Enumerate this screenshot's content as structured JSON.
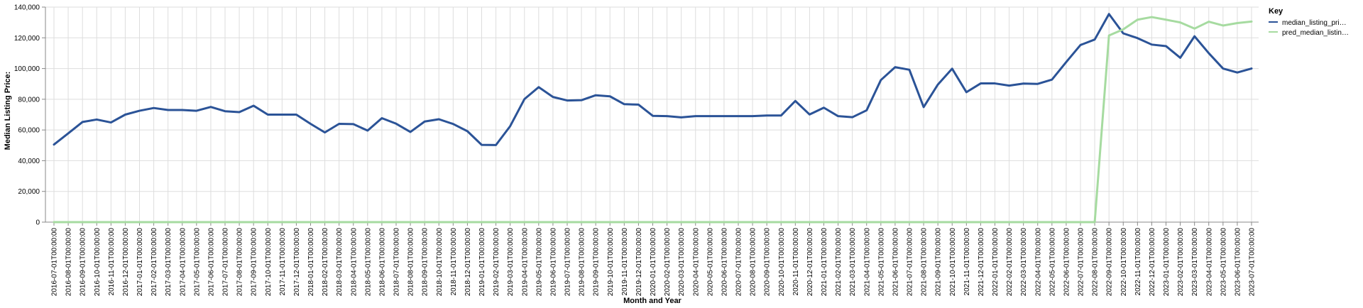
{
  "chart_data": {
    "type": "line",
    "xlabel": "Month and Year",
    "ylabel": "Median Listing Price:",
    "ylim": [
      0,
      140000
    ],
    "yticks": [
      0,
      20000,
      40000,
      60000,
      80000,
      100000,
      120000,
      140000
    ],
    "ytick_labels": [
      "0",
      "20,000",
      "40,000",
      "60,000",
      "80,000",
      "100,000",
      "120,000",
      "140,000"
    ],
    "grid": true,
    "legend_position": "top-right",
    "legend": {
      "title": "Key",
      "labels": [
        "median_listing_pri…",
        "pred_median_listin…"
      ]
    },
    "categories": [
      "2016-07-01T00:00:00",
      "2016-08-01T00:00:00",
      "2016-09-01T00:00:00",
      "2016-10-01T00:00:00",
      "2016-11-01T00:00:00",
      "2016-12-01T00:00:00",
      "2017-01-01T00:00:00",
      "2017-02-01T00:00:00",
      "2017-03-01T00:00:00",
      "2017-04-01T00:00:00",
      "2017-05-01T00:00:00",
      "2017-06-01T00:00:00",
      "2017-07-01T00:00:00",
      "2017-08-01T00:00:00",
      "2017-09-01T00:00:00",
      "2017-10-01T00:00:00",
      "2017-11-01T00:00:00",
      "2017-12-01T00:00:00",
      "2018-01-01T00:00:00",
      "2018-02-01T00:00:00",
      "2018-03-01T00:00:00",
      "2018-04-01T00:00:00",
      "2018-05-01T00:00:00",
      "2018-06-01T00:00:00",
      "2018-07-01T00:00:00",
      "2018-08-01T00:00:00",
      "2018-09-01T00:00:00",
      "2018-10-01T00:00:00",
      "2018-11-01T00:00:00",
      "2018-12-01T00:00:00",
      "2019-01-01T00:00:00",
      "2019-02-01T00:00:00",
      "2019-03-01T00:00:00",
      "2019-04-01T00:00:00",
      "2019-05-01T00:00:00",
      "2019-06-01T00:00:00",
      "2019-07-01T00:00:00",
      "2019-08-01T00:00:00",
      "2019-09-01T00:00:00",
      "2019-10-01T00:00:00",
      "2019-11-01T00:00:00",
      "2019-12-01T00:00:00",
      "2020-01-01T00:00:00",
      "2020-02-01T00:00:00",
      "2020-03-01T00:00:00",
      "2020-04-01T00:00:00",
      "2020-05-01T00:00:00",
      "2020-06-01T00:00:00",
      "2020-07-01T00:00:00",
      "2020-08-01T00:00:00",
      "2020-09-01T00:00:00",
      "2020-10-01T00:00:00",
      "2020-11-01T00:00:00",
      "2020-12-01T00:00:00",
      "2021-01-01T00:00:00",
      "2021-02-01T00:00:00",
      "2021-03-01T00:00:00",
      "2021-04-01T00:00:00",
      "2021-05-01T00:00:00",
      "2021-06-01T00:00:00",
      "2021-07-01T00:00:00",
      "2021-08-01T00:00:00",
      "2021-09-01T00:00:00",
      "2021-10-01T00:00:00",
      "2021-11-01T00:00:00",
      "2021-12-01T00:00:00",
      "2022-01-01T00:00:00",
      "2022-02-01T00:00:00",
      "2022-03-01T00:00:00",
      "2022-04-01T00:00:00",
      "2022-05-01T00:00:00",
      "2022-06-01T00:00:00",
      "2022-07-01T00:00:00",
      "2022-08-01T00:00:00",
      "2022-09-01T00:00:00",
      "2022-10-01T00:00:00",
      "2022-11-01T00:00:00",
      "2022-12-01T00:00:00",
      "2023-01-01T00:00:00",
      "2023-02-01T00:00:00",
      "2023-03-01T00:00:00",
      "2023-04-01T00:00:00",
      "2023-05-01T00:00:00",
      "2023-06-01T00:00:00",
      "2023-07-01T00:00:00"
    ],
    "series": [
      {
        "name": "median_listing_pri…",
        "color": "#2b5397",
        "values": [
          50500,
          57800,
          65200,
          66800,
          64900,
          70000,
          72500,
          74300,
          73000,
          73000,
          72500,
          75000,
          72200,
          71600,
          75800,
          70000,
          70000,
          70000,
          64000,
          58400,
          64000,
          63800,
          59600,
          67700,
          64100,
          58700,
          65500,
          67000,
          63900,
          59200,
          50300,
          50200,
          62500,
          80100,
          87900,
          81500,
          79200,
          79400,
          82600,
          81900,
          76800,
          76500,
          69200,
          69000,
          68200,
          69000,
          69000,
          69000,
          69000,
          69000,
          69400,
          69400,
          78900,
          70100,
          74500,
          69000,
          68300,
          72800,
          92500,
          100900,
          99200,
          74900,
          89600,
          99900,
          84600,
          90300,
          90300,
          88900,
          90200,
          90000,
          92800,
          104200,
          115300,
          118900,
          135500,
          122900,
          119800,
          115600,
          114600,
          107000,
          121000,
          110000,
          100000,
          97400,
          100000
        ]
      },
      {
        "name": "pred_median_listin…",
        "color": "#a6dba0",
        "values": [
          0,
          0,
          0,
          0,
          0,
          0,
          0,
          0,
          0,
          0,
          0,
          0,
          0,
          0,
          0,
          0,
          0,
          0,
          0,
          0,
          0,
          0,
          0,
          0,
          0,
          0,
          0,
          0,
          0,
          0,
          0,
          0,
          0,
          0,
          0,
          0,
          0,
          0,
          0,
          0,
          0,
          0,
          0,
          0,
          0,
          0,
          0,
          0,
          0,
          0,
          0,
          0,
          0,
          0,
          0,
          0,
          0,
          0,
          0,
          0,
          0,
          0,
          0,
          0,
          0,
          0,
          0,
          0,
          0,
          0,
          0,
          0,
          0,
          0,
          121500,
          125500,
          131800,
          133500,
          131800,
          130000,
          126000,
          130500,
          128000,
          129600,
          130600
        ]
      }
    ]
  }
}
